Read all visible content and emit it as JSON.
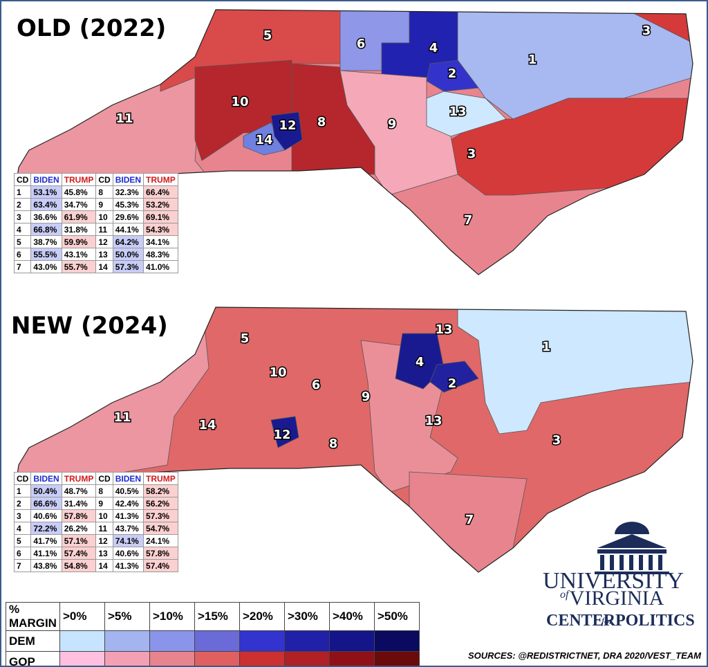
{
  "maps": [
    {
      "title": "OLD (2022)",
      "districts": [
        "5",
        "6",
        "4",
        "3",
        "1",
        "2",
        "10",
        "8",
        "12",
        "14",
        "13",
        "9",
        "11",
        "3",
        "7"
      ],
      "table": {
        "header": [
          "CD",
          "BIDEN",
          "TRUMP",
          "CD",
          "BIDEN",
          "TRUMP"
        ],
        "rows": [
          [
            "1",
            "53.1%",
            "45.8%",
            "8",
            "32.3%",
            "66.4%"
          ],
          [
            "2",
            "63.4%",
            "34.7%",
            "9",
            "45.3%",
            "53.2%"
          ],
          [
            "3",
            "36.6%",
            "61.9%",
            "10",
            "29.6%",
            "69.1%"
          ],
          [
            "4",
            "66.8%",
            "31.8%",
            "11",
            "44.1%",
            "54.3%"
          ],
          [
            "5",
            "38.7%",
            "59.9%",
            "12",
            "64.2%",
            "34.1%"
          ],
          [
            "6",
            "55.5%",
            "43.1%",
            "13",
            "50.0%",
            "48.3%"
          ],
          [
            "7",
            "43.0%",
            "55.7%",
            "14",
            "57.3%",
            "41.0%"
          ]
        ]
      }
    },
    {
      "title": "NEW (2024)",
      "districts": [
        "13",
        "5",
        "1",
        "4",
        "10",
        "6",
        "2",
        "9",
        "11",
        "14",
        "13",
        "12",
        "8",
        "3",
        "7"
      ],
      "table": {
        "header": [
          "CD",
          "BIDEN",
          "TRUMP",
          "CD",
          "BIDEN",
          "TRUMP"
        ],
        "rows": [
          [
            "1",
            "50.4%",
            "48.7%",
            "8",
            "40.5%",
            "58.2%"
          ],
          [
            "2",
            "66.6%",
            "31.4%",
            "9",
            "42.4%",
            "56.2%"
          ],
          [
            "3",
            "40.6%",
            "57.8%",
            "10",
            "41.3%",
            "57.3%"
          ],
          [
            "4",
            "72.2%",
            "26.2%",
            "11",
            "43.7%",
            "54.7%"
          ],
          [
            "5",
            "41.7%",
            "57.1%",
            "12",
            "74.1%",
            "24.1%"
          ],
          [
            "6",
            "41.1%",
            "57.4%",
            "13",
            "40.6%",
            "57.8%"
          ],
          [
            "7",
            "43.8%",
            "54.8%",
            "14",
            "41.3%",
            "57.4%"
          ]
        ]
      }
    }
  ],
  "legend": {
    "header": [
      "% MARGIN",
      ">0%",
      ">5%",
      ">10%",
      ">15%",
      ">20%",
      ">30%",
      ">40%",
      ">50%"
    ],
    "rows": [
      {
        "label": "DEM",
        "colors": [
          "#c6e4ff",
          "#a3b4f0",
          "#8a94ea",
          "#6a6ad8",
          "#3333d0",
          "#2020a8",
          "#15158a",
          "#0a0a60"
        ]
      },
      {
        "label": "GOP",
        "colors": [
          "#ffc0e0",
          "#f4a0b4",
          "#e8848e",
          "#e06060",
          "#cc3030",
          "#b02025",
          "#901018",
          "#6a0a0a"
        ]
      }
    ]
  },
  "logo": {
    "university": "UNIVERSITY",
    "of": "of",
    "virginia": "VIRGINIA",
    "center": "CENTER",
    "for": "for",
    "politics": "POLITICS"
  },
  "sources": "SOURCES: @REDISTRICTNET, DRA 2020/VEST_TEAM"
}
